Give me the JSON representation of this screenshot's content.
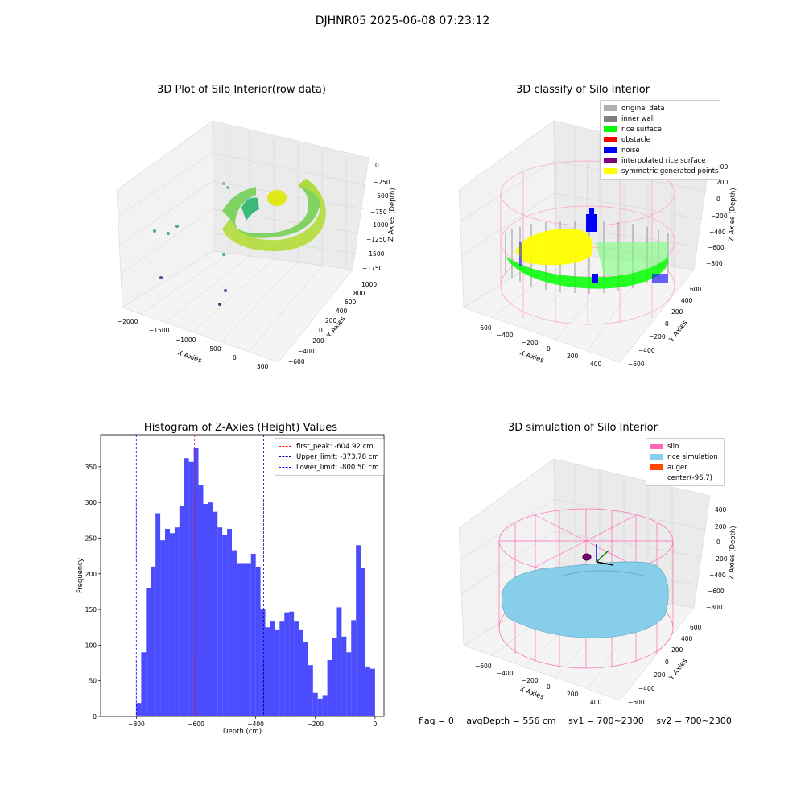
{
  "suptitle": "DJHNR05 2025-06-08 07:23:12",
  "footer": {
    "flag": "flag = 0",
    "avg": "avgDepth = 556 cm",
    "sv1": "sv1 = 700~2300",
    "sv2": "sv2 = 700~2300"
  },
  "colors": {
    "pink_silo": "#ff69b4",
    "rice_sim": "#87ceeb",
    "auger": "#ff4500",
    "hist_bar": "#0000ff",
    "rice_surface": "#00ff00",
    "noise": "#0000ff",
    "symmetric": "#ffff00",
    "interpolated": "#800080",
    "inner_wall": "#808080",
    "original": "#b0b0b0",
    "obstacle": "#ff0000"
  },
  "panels": {
    "p1": {
      "title": "3D Plot of Silo Interior(row data)",
      "x_label": "X Axies",
      "y_label": "Y Axies",
      "z_label": "Z Axies (Depth)",
      "x_ticks": [
        "−2000",
        "−1500",
        "−1000",
        "−500",
        "0",
        "500"
      ],
      "y_ticks": [
        "−600",
        "−400",
        "−200",
        "0",
        "200",
        "400",
        "600",
        "800",
        "1000"
      ],
      "z_ticks": [
        "0",
        "−250",
        "−500",
        "−750",
        "−1000",
        "−1250",
        "−1500",
        "−1750"
      ]
    },
    "p2": {
      "title": "3D classify of Silo Interior",
      "x_label": "X Axies",
      "y_label": "Y Axies",
      "z_label": "Z Axies (Depth)",
      "x_ticks": [
        "−600",
        "−400",
        "−200",
        "0",
        "200",
        "400"
      ],
      "y_ticks": [
        "−600",
        "−400",
        "−200",
        "0",
        "200",
        "400",
        "600"
      ],
      "z_ticks": [
        "400",
        "200",
        "0",
        "−200",
        "−400",
        "−600",
        "−800"
      ],
      "legend": [
        {
          "label": "original data",
          "color": "#b0b0b0"
        },
        {
          "label": "inner wall",
          "color": "#808080"
        },
        {
          "label": "rice surface",
          "color": "#00ff00"
        },
        {
          "label": "obstacle",
          "color": "#ff0000"
        },
        {
          "label": "noise",
          "color": "#0000ff"
        },
        {
          "label": "interpolated rice surface",
          "color": "#800080"
        },
        {
          "label": "symmetric generated points",
          "color": "#ffff00"
        }
      ]
    },
    "p4": {
      "title": "3D simulation of Silo Interior",
      "x_label": "X Axies",
      "y_label": "Y Axies",
      "z_label": "Z Axies (Depth)",
      "x_ticks": [
        "−600",
        "−400",
        "−200",
        "0",
        "200",
        "400"
      ],
      "y_ticks": [
        "−600",
        "−400",
        "−200",
        "0",
        "200",
        "400",
        "600"
      ],
      "z_ticks": [
        "400",
        "200",
        "0",
        "−200",
        "−400",
        "−600",
        "−800"
      ],
      "legend": [
        {
          "label": "silo",
          "color": "#ff69b4"
        },
        {
          "label": "rice simulation",
          "color": "#87ceeb"
        },
        {
          "label": "auger",
          "color": "#ff4500"
        },
        {
          "label": "center(-96,7)",
          "color": ""
        }
      ]
    }
  },
  "chart_data": {
    "type": "bar",
    "title": "Histogram of Z-Axies (Height) Values",
    "xlabel": "Depth (cm)",
    "ylabel": "Frequency",
    "xlim": [
      -920,
      30
    ],
    "ylim": [
      0,
      395
    ],
    "x_ticks": [
      -800,
      -600,
      -400,
      -200,
      0
    ],
    "x_tick_labels": [
      "−800",
      "−600",
      "−400",
      "−200",
      "0"
    ],
    "y_ticks": [
      0,
      50,
      100,
      150,
      200,
      250,
      300,
      350
    ],
    "bin_width": 16,
    "bin_starts": [
      -880,
      -800,
      -784,
      -768,
      -752,
      -736,
      -720,
      -704,
      -688,
      -672,
      -656,
      -640,
      -624,
      -608,
      -592,
      -576,
      -560,
      -544,
      -528,
      -512,
      -496,
      -480,
      -464,
      -448,
      -432,
      -416,
      -400,
      -384,
      -368,
      -352,
      -336,
      -320,
      -304,
      -288,
      -272,
      -256,
      -240,
      -224,
      -208,
      -192,
      -176,
      -160,
      -144,
      -128,
      -112,
      -96,
      -80,
      -64,
      -48,
      -32,
      -16
    ],
    "values": [
      1,
      19,
      90,
      180,
      210,
      285,
      247,
      263,
      257,
      265,
      295,
      362,
      357,
      376,
      325,
      298,
      300,
      287,
      265,
      255,
      263,
      233,
      215,
      215,
      215,
      228,
      210,
      150,
      125,
      133,
      122,
      133,
      146,
      147,
      133,
      122,
      105,
      72,
      33,
      25,
      30,
      79,
      110,
      153,
      112,
      90,
      135,
      240,
      208,
      70,
      67
    ],
    "lines": [
      {
        "label": "first_peak: -604.92 cm",
        "x": -604.92,
        "color": "#ff0000"
      },
      {
        "label": "Upper_limit: -373.78 cm",
        "x": -373.78,
        "color": "#00008b"
      },
      {
        "label": "Lower_limit: -800.50 cm",
        "x": -800.5,
        "color": "#0000ff"
      }
    ]
  }
}
